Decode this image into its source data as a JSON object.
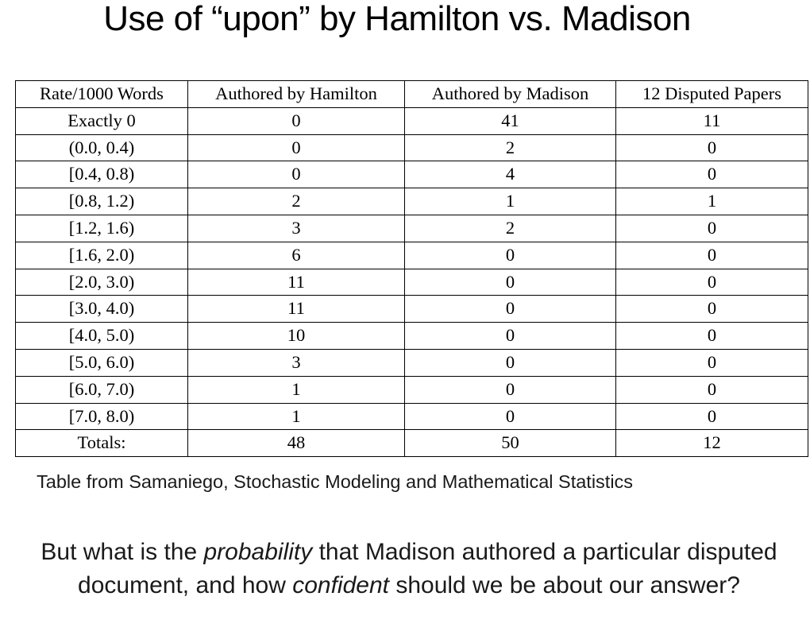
{
  "title": "Use of “upon” by Hamilton vs. Madison",
  "table": {
    "headers": [
      "Rate/1000 Words",
      "Authored by Hamilton",
      "Authored by Madison",
      "12 Disputed Papers"
    ],
    "rows": [
      [
        "Exactly 0",
        "0",
        "41",
        "11"
      ],
      [
        "(0.0, 0.4)",
        "0",
        "2",
        "0"
      ],
      [
        "[0.4, 0.8)",
        "0",
        "4",
        "0"
      ],
      [
        "[0.8, 1.2)",
        "2",
        "1",
        "1"
      ],
      [
        "[1.2, 1.6)",
        "3",
        "2",
        "0"
      ],
      [
        "[1.6, 2.0)",
        "6",
        "0",
        "0"
      ],
      [
        "[2.0, 3.0)",
        "11",
        "0",
        "0"
      ],
      [
        "[3.0, 4.0)",
        "11",
        "0",
        "0"
      ],
      [
        "[4.0, 5.0)",
        "10",
        "0",
        "0"
      ],
      [
        "[5.0, 6.0)",
        "3",
        "0",
        "0"
      ],
      [
        "[6.0, 7.0)",
        "1",
        "0",
        "0"
      ],
      [
        "[7.0, 8.0)",
        "1",
        "0",
        "0"
      ],
      [
        "Totals:",
        "48",
        "50",
        "12"
      ]
    ]
  },
  "caption": "Table from Samaniego, Stochastic Modeling and Mathematical Statistics",
  "question": {
    "part1": "But what is the ",
    "emphasis1": "probability",
    "part2": " that Madison authored a particular disputed document, and how ",
    "emphasis2": "confident",
    "part3": " should we be about our answer?"
  }
}
